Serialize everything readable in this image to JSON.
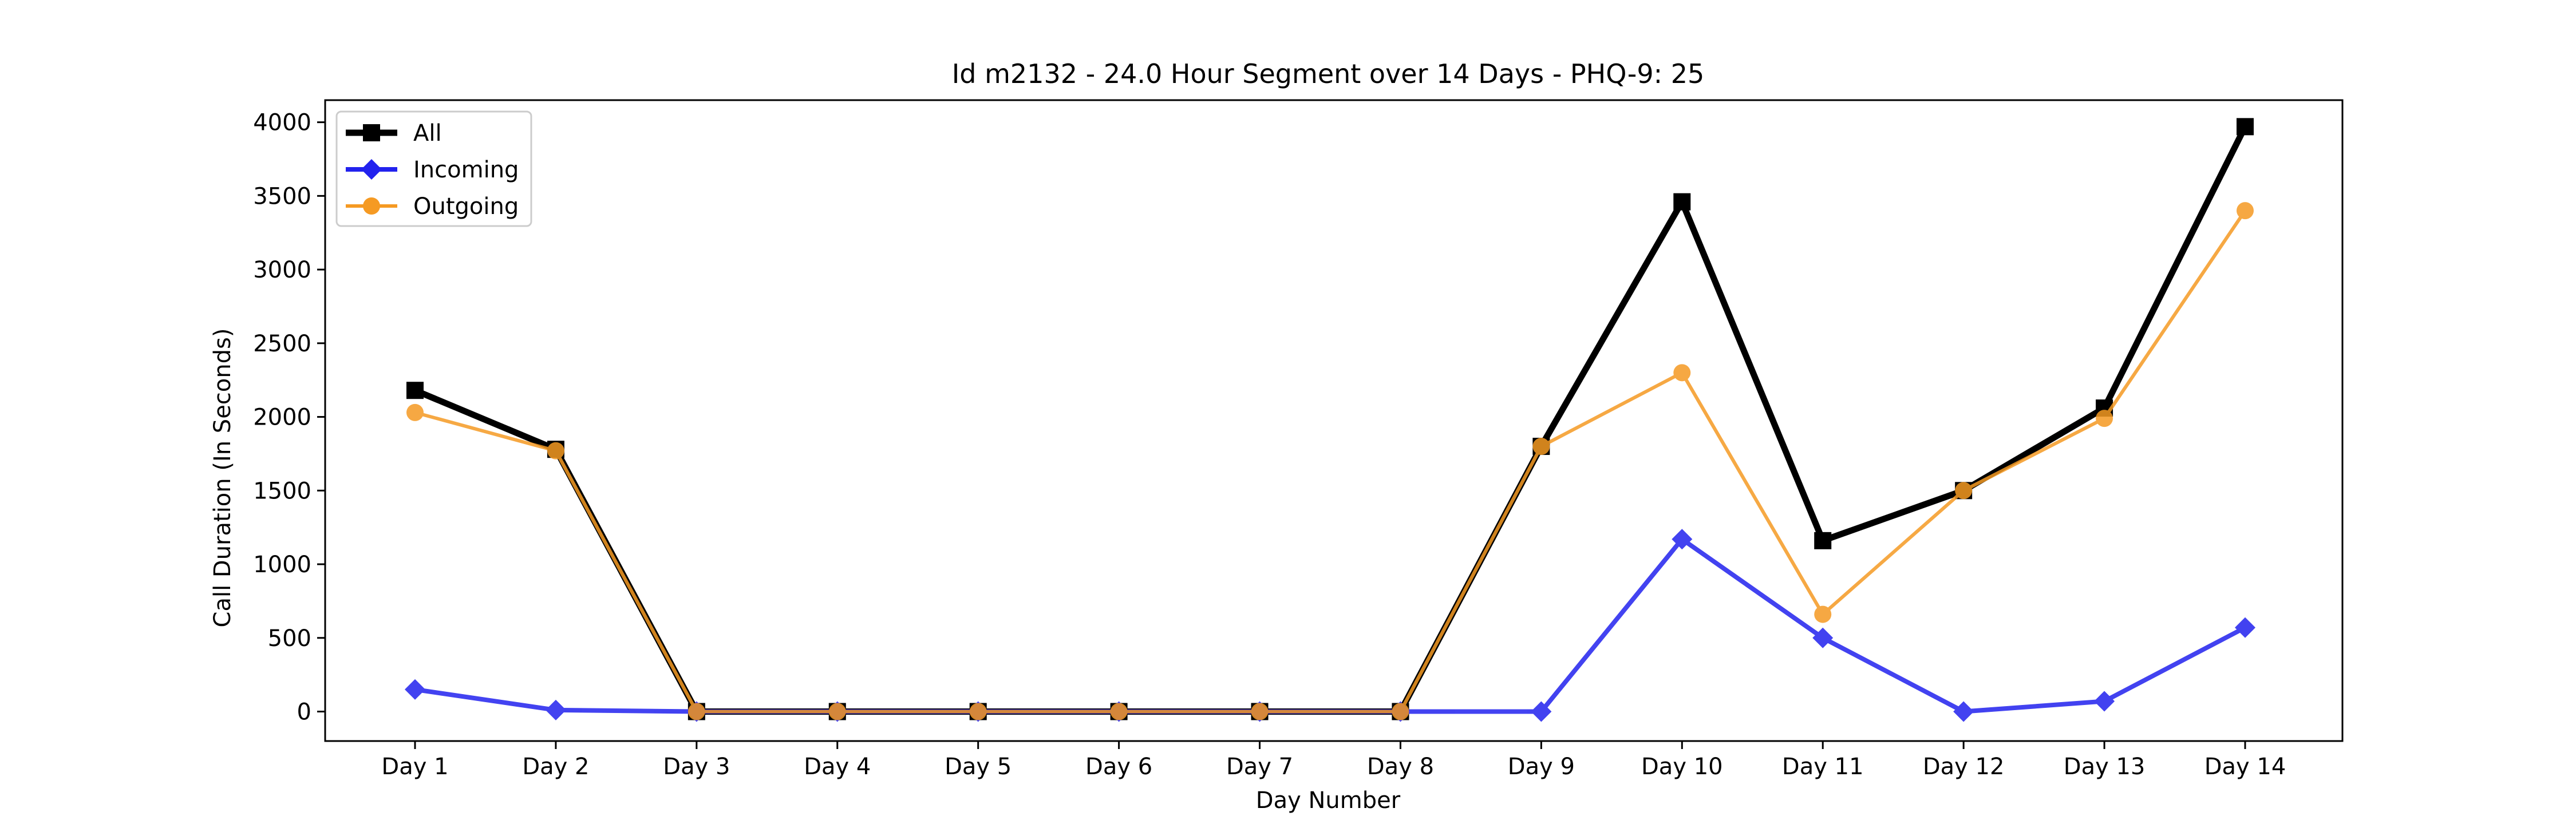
{
  "chart_data": {
    "type": "line",
    "title": "Id m2132 - 24.0 Hour Segment over 14 Days - PHQ-9: 25",
    "xlabel": "Day Number",
    "ylabel": "Call Duration (In Seconds)",
    "categories": [
      "Day 1",
      "Day 2",
      "Day 3",
      "Day 4",
      "Day 5",
      "Day 6",
      "Day 7",
      "Day 8",
      "Day 9",
      "Day 10",
      "Day 11",
      "Day 12",
      "Day 13",
      "Day 14"
    ],
    "ylim": [
      -200,
      4150
    ],
    "yticks": [
      0,
      500,
      1000,
      1500,
      2000,
      2500,
      3000,
      3500,
      4000
    ],
    "grid": false,
    "legend_position": "top-left",
    "series": [
      {
        "name": "All",
        "color": "#000000",
        "marker": "square",
        "values": [
          2180,
          1780,
          0,
          0,
          0,
          0,
          0,
          0,
          1800,
          3460,
          1160,
          1500,
          2060,
          3970
        ]
      },
      {
        "name": "Incoming",
        "color": "#2222ee",
        "marker": "diamond",
        "values": [
          150,
          10,
          0,
          0,
          0,
          0,
          0,
          0,
          0,
          1170,
          500,
          0,
          70,
          570
        ]
      },
      {
        "name": "Outgoing",
        "color": "#f59a23",
        "marker": "circle",
        "values": [
          2030,
          1770,
          0,
          0,
          0,
          0,
          0,
          0,
          1800,
          2300,
          660,
          1500,
          1990,
          3400
        ]
      }
    ]
  }
}
